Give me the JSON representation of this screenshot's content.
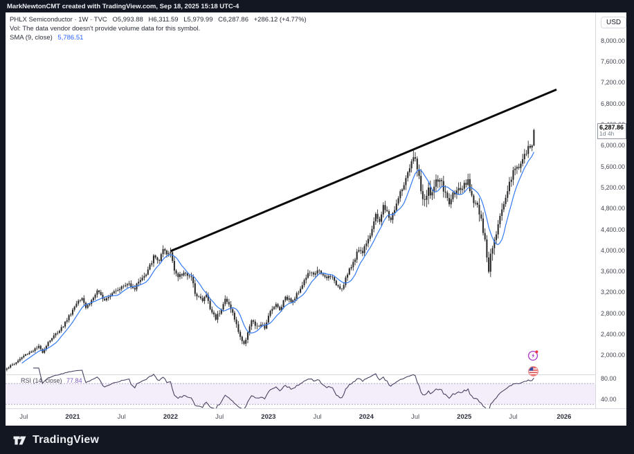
{
  "frame": {
    "attribution": "MarkNewtonCMT created with TradingView.com, Sep 18, 2025 15:18 UTC-4",
    "brand": "TradingView"
  },
  "legend": {
    "symbol_title": "PHLX Semiconductor · 1W · TVC",
    "open": "O5,993.88",
    "high": "H6,311.59",
    "low": "L5,979.99",
    "close": "C6,287.86",
    "change": "+286.12 (+4.77%)",
    "volume_note": "Vol: The data vendor doesn't provide volume data for this symbol.",
    "sma_label": "SMA (9, close)",
    "sma_value": "5,786.51",
    "rsi_label": "RSI (14, close)",
    "rsi_value": "77.84"
  },
  "price_axis": {
    "currency_button": "USD",
    "tick_values": [
      8000,
      7600,
      7200,
      6800,
      6400,
      6000,
      5600,
      5200,
      4800,
      4400,
      4000,
      3600,
      3200,
      2800,
      2400,
      2000
    ],
    "rsi_tick_values": [
      80,
      40
    ],
    "last_price_label": "6,287.86",
    "countdown": "1d 4h"
  },
  "time_axis": {
    "labels": [
      {
        "text": "Jul",
        "week": 9,
        "type": "month"
      },
      {
        "text": "2021",
        "week": 35,
        "type": "year"
      },
      {
        "text": "Jul",
        "week": 61,
        "type": "month"
      },
      {
        "text": "2022",
        "week": 87,
        "type": "year"
      },
      {
        "text": "Jul",
        "week": 113,
        "type": "month"
      },
      {
        "text": "2023",
        "week": 139,
        "type": "year"
      },
      {
        "text": "Jul",
        "week": 165,
        "type": "month"
      },
      {
        "text": "2024",
        "week": 191,
        "type": "year"
      },
      {
        "text": "Jul",
        "week": 217,
        "type": "month"
      },
      {
        "text": "2025",
        "week": 243,
        "type": "year"
      },
      {
        "text": "Jul",
        "week": 269,
        "type": "month"
      },
      {
        "text": "2026",
        "week": 296,
        "type": "year"
      }
    ]
  },
  "chart_data": {
    "type": "candlestick",
    "title": "PHLX Semiconductor",
    "interval": "1W",
    "exchange": "TVC",
    "x_range": [
      "May 2020",
      "Sep 2025"
    ],
    "bars": 281,
    "ylim": [
      1630,
      8530
    ],
    "grid": false,
    "candle_color": "#2b2b2b",
    "last_bar": {
      "open": 5993.88,
      "high": 6311.59,
      "low": 5979.99,
      "close": 6287.86,
      "change": 286.12,
      "change_pct": 4.77
    },
    "close_anchors": [
      [
        0,
        1755
      ],
      [
        4,
        1830
      ],
      [
        9,
        1985
      ],
      [
        13,
        2070
      ],
      [
        17,
        2155
      ],
      [
        19,
        2060
      ],
      [
        22,
        2250
      ],
      [
        26,
        2400
      ],
      [
        30,
        2560
      ],
      [
        35,
        2860
      ],
      [
        38,
        3050
      ],
      [
        40,
        3110
      ],
      [
        42,
        2910
      ],
      [
        44,
        2985
      ],
      [
        48,
        3205
      ],
      [
        52,
        3065
      ],
      [
        57,
        3225
      ],
      [
        61,
        3295
      ],
      [
        65,
        3360
      ],
      [
        68,
        3265
      ],
      [
        70,
        3415
      ],
      [
        74,
        3525
      ],
      [
        78,
        3865
      ],
      [
        81,
        3805
      ],
      [
        83,
        3985
      ],
      [
        85,
        3905
      ],
      [
        87,
        3960
      ],
      [
        89,
        3655
      ],
      [
        91,
        3475
      ],
      [
        95,
        3585
      ],
      [
        98,
        3455
      ],
      [
        100,
        3205
      ],
      [
        104,
        3025
      ],
      [
        106,
        3155
      ],
      [
        108,
        2875
      ],
      [
        111,
        2705
      ],
      [
        113,
        2825
      ],
      [
        116,
        3055
      ],
      [
        119,
        2905
      ],
      [
        122,
        2565
      ],
      [
        124,
        2355
      ],
      [
        126,
        2185
      ],
      [
        128,
        2455
      ],
      [
        130,
        2645
      ],
      [
        133,
        2525
      ],
      [
        135,
        2585
      ],
      [
        137,
        2485
      ],
      [
        139,
        2775
      ],
      [
        141,
        2905
      ],
      [
        143,
        2955
      ],
      [
        145,
        2855
      ],
      [
        148,
        3125
      ],
      [
        150,
        3055
      ],
      [
        152,
        3025
      ],
      [
        154,
        3155
      ],
      [
        156,
        3285
      ],
      [
        159,
        3485
      ],
      [
        161,
        3585
      ],
      [
        163,
        3505
      ],
      [
        165,
        3645
      ],
      [
        167,
        3525
      ],
      [
        170,
        3465
      ],
      [
        172,
        3525
      ],
      [
        174,
        3385
      ],
      [
        176,
        3325
      ],
      [
        178,
        3265
      ],
      [
        180,
        3465
      ],
      [
        183,
        3685
      ],
      [
        185,
        3855
      ],
      [
        187,
        4025
      ],
      [
        189,
        3955
      ],
      [
        191,
        4165
      ],
      [
        193,
        4305
      ],
      [
        196,
        4645
      ],
      [
        198,
        4565
      ],
      [
        200,
        4825
      ],
      [
        202,
        4705
      ],
      [
        204,
        4585
      ],
      [
        206,
        4785
      ],
      [
        209,
        5085
      ],
      [
        211,
        5255
      ],
      [
        213,
        5425
      ],
      [
        215,
        5655
      ],
      [
        217,
        5785
      ],
      [
        219,
        5355
      ],
      [
        220,
        5125
      ],
      [
        222,
        4875
      ],
      [
        224,
        5155
      ],
      [
        226,
        5085
      ],
      [
        228,
        5285
      ],
      [
        230,
        5355
      ],
      [
        232,
        5155
      ],
      [
        235,
        4885
      ],
      [
        237,
        5055
      ],
      [
        239,
        5185
      ],
      [
        241,
        5085
      ],
      [
        243,
        5225
      ],
      [
        245,
        5285
      ],
      [
        248,
        4955
      ],
      [
        250,
        4855
      ],
      [
        252,
        4525
      ],
      [
        254,
        4155
      ],
      [
        255,
        3825
      ],
      [
        256,
        3625
      ],
      [
        257,
        3955
      ],
      [
        259,
        4255
      ],
      [
        261,
        4485
      ],
      [
        263,
        4785
      ],
      [
        265,
        5025
      ],
      [
        267,
        5285
      ],
      [
        269,
        5485
      ],
      [
        271,
        5585
      ],
      [
        273,
        5655
      ],
      [
        275,
        5785
      ],
      [
        277,
        5925
      ],
      [
        279,
        5995
      ],
      [
        280,
        6287.86
      ]
    ],
    "volatility_anchors": [
      [
        0,
        0.03
      ],
      [
        35,
        0.032
      ],
      [
        61,
        0.028
      ],
      [
        87,
        0.036
      ],
      [
        100,
        0.04
      ],
      [
        113,
        0.042
      ],
      [
        126,
        0.048
      ],
      [
        139,
        0.035
      ],
      [
        165,
        0.032
      ],
      [
        191,
        0.03
      ],
      [
        213,
        0.032
      ],
      [
        217,
        0.04
      ],
      [
        222,
        0.055
      ],
      [
        230,
        0.038
      ],
      [
        243,
        0.035
      ],
      [
        252,
        0.05
      ],
      [
        256,
        0.065
      ],
      [
        261,
        0.045
      ],
      [
        269,
        0.032
      ],
      [
        280,
        0.028
      ]
    ],
    "sma": {
      "period": 9,
      "source": "close",
      "color": "#3179f5",
      "last_value": 5786.51
    },
    "rsi": {
      "period": 14,
      "source": "close",
      "color": "#4a4160",
      "last_value": 77.84,
      "ylim": [
        25,
        85
      ],
      "upper_band": 70,
      "lower_band": 30,
      "band_fill": "rgba(149,86,204,0.10)",
      "band_line_color": "#b3a7c9"
    },
    "trendline": {
      "from_week": 87,
      "from_price": 3980,
      "to_week": 292,
      "to_price": 7060,
      "color": "#0a0a0a",
      "width": 3
    },
    "legend_position": "top-left"
  },
  "events": {
    "streak_icon_color": "#a838c8",
    "streak_dot_color": "#f23645",
    "flag_ring_color": "#ef8b8b"
  }
}
